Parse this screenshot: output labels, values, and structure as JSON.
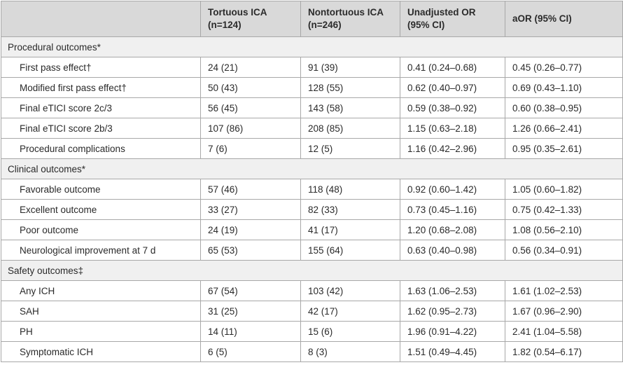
{
  "header": {
    "col1_line1": "Tortuous ICA",
    "col1_line2": "(n=124)",
    "col2_line1": "Nontortuous ICA",
    "col2_line2": "(n=246)",
    "col3_line1": "Unadjusted OR",
    "col3_line2": "(95% CI)",
    "col4": "aOR (95% CI)"
  },
  "sections": [
    {
      "title": "Procedural outcomes*",
      "rows": [
        {
          "label": "First pass effect†",
          "tortuous": "24 (21)",
          "nontortuous": "91 (39)",
          "unadjusted": "0.41 (0.24–0.68)",
          "aor": "0.45 (0.26–0.77)"
        },
        {
          "label": "Modified first pass effect†",
          "tortuous": "50 (43)",
          "nontortuous": "128 (55)",
          "unadjusted": "0.62 (0.40–0.97)",
          "aor": "0.69 (0.43–1.10)"
        },
        {
          "label": "Final eTICI score 2c/3",
          "tortuous": "56 (45)",
          "nontortuous": "143 (58)",
          "unadjusted": "0.59 (0.38–0.92)",
          "aor": "0.60 (0.38–0.95)"
        },
        {
          "label": "Final eTICI score 2b/3",
          "tortuous": "107 (86)",
          "nontortuous": "208 (85)",
          "unadjusted": "1.15 (0.63–2.18)",
          "aor": "1.26 (0.66–2.41)"
        },
        {
          "label": "Procedural complications",
          "tortuous": "7 (6)",
          "nontortuous": "12 (5)",
          "unadjusted": "1.16 (0.42–2.96)",
          "aor": "0.95 (0.35–2.61)"
        }
      ]
    },
    {
      "title": "Clinical outcomes*",
      "rows": [
        {
          "label": "Favorable outcome",
          "tortuous": "57 (46)",
          "nontortuous": "118 (48)",
          "unadjusted": "0.92 (0.60–1.42)",
          "aor": "1.05 (0.60–1.82)"
        },
        {
          "label": "Excellent outcome",
          "tortuous": "33 (27)",
          "nontortuous": "82 (33)",
          "unadjusted": "0.73 (0.45–1.16)",
          "aor": "0.75 (0.42–1.33)"
        },
        {
          "label": "Poor outcome",
          "tortuous": "24 (19)",
          "nontortuous": "41 (17)",
          "unadjusted": "1.20 (0.68–2.08)",
          "aor": "1.08 (0.56–2.10)"
        },
        {
          "label": "Neurological improvement at 7 d",
          "tortuous": "65 (53)",
          "nontortuous": "155 (64)",
          "unadjusted": "0.63 (0.40–0.98)",
          "aor": "0.56 (0.34–0.91)"
        }
      ]
    },
    {
      "title": "Safety outcomes‡",
      "rows": [
        {
          "label": "Any ICH",
          "tortuous": "67 (54)",
          "nontortuous": "103 (42)",
          "unadjusted": "1.63 (1.06–2.53)",
          "aor": "1.61 (1.02–2.53)"
        },
        {
          "label": "SAH",
          "tortuous": "31 (25)",
          "nontortuous": "42 (17)",
          "unadjusted": "1.62 (0.95–2.73)",
          "aor": "1.67 (0.96–2.90)"
        },
        {
          "label": "PH",
          "tortuous": "14 (11)",
          "nontortuous": "15 (6)",
          "unadjusted": "1.96 (0.91–4.22)",
          "aor": "2.41 (1.04–5.58)"
        },
        {
          "label": "Symptomatic ICH",
          "tortuous": "6 (5)",
          "nontortuous": "8 (3)",
          "unadjusted": "1.51 (0.49–4.45)",
          "aor": "1.82 (0.54–6.17)"
        }
      ]
    }
  ]
}
